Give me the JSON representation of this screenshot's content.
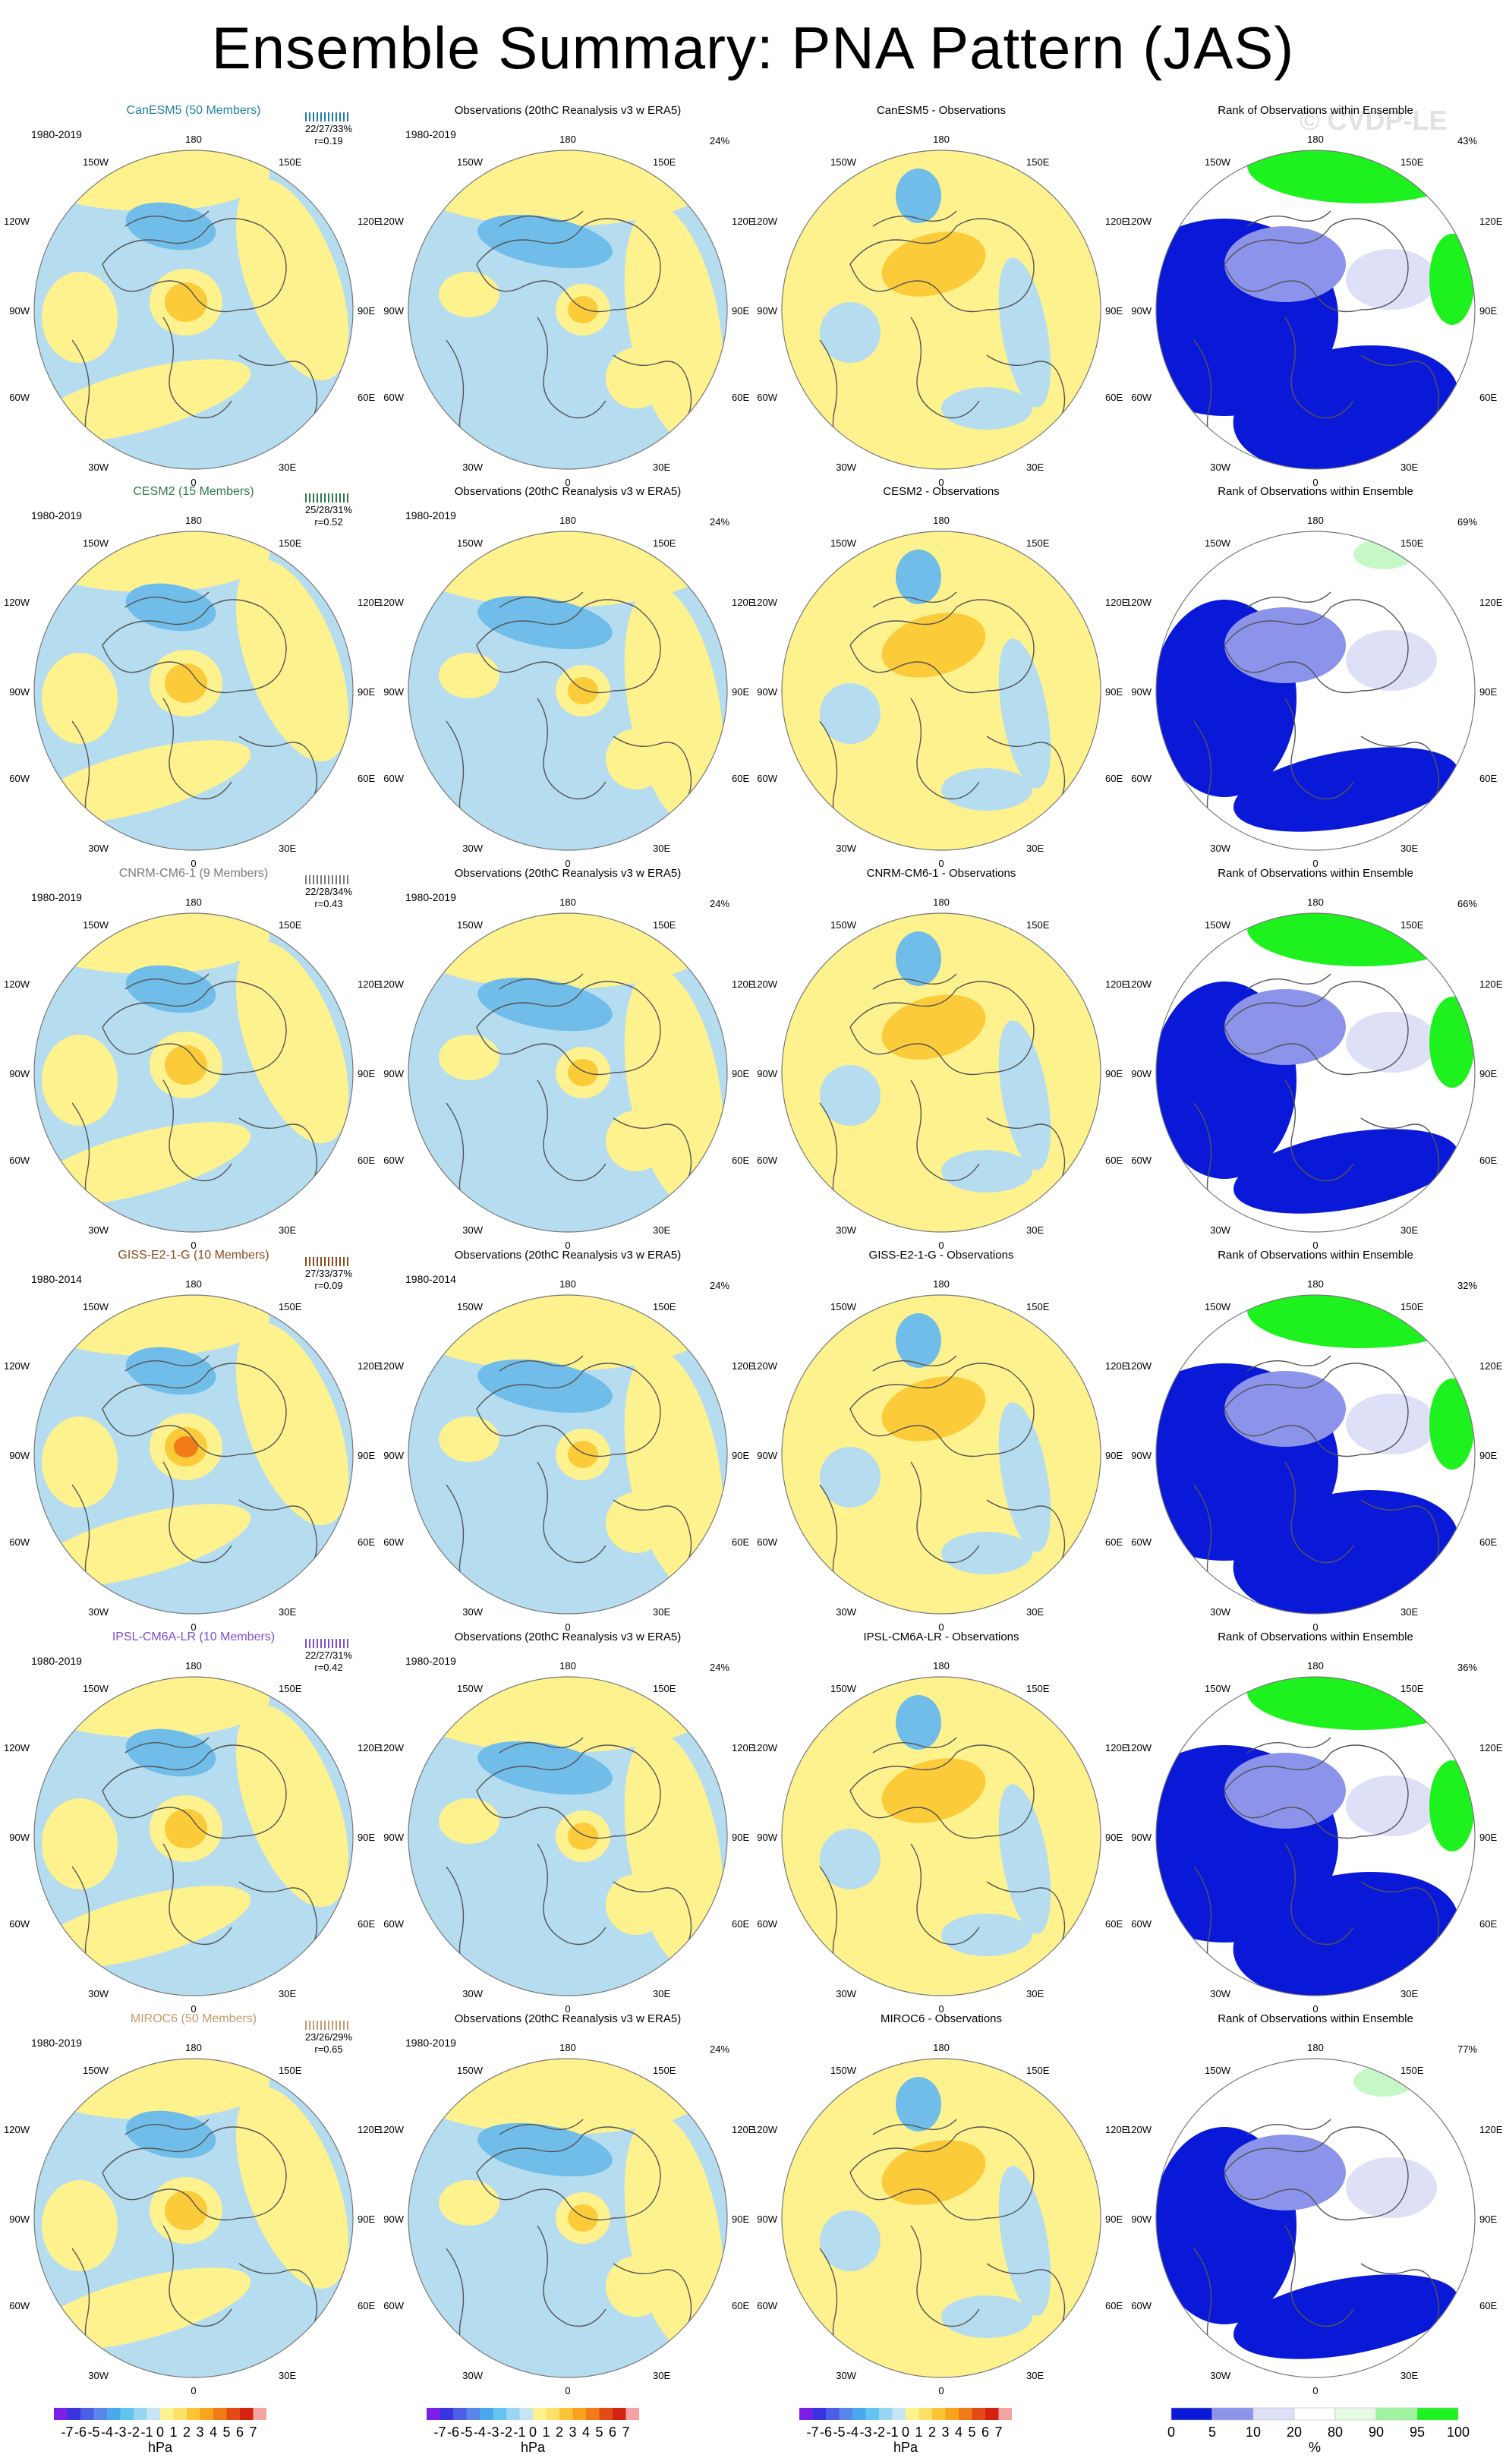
{
  "title": "Ensemble Summary: PNA Pattern (JAS)",
  "watermark": "© CVDP-LE",
  "colors": {
    "land_outline": "#555555",
    "pos1": "#fef28f",
    "pos2": "#fccb3a",
    "pos3": "#f9a31c",
    "pos4": "#f07b17",
    "neg1": "#b6dcf0",
    "neg2": "#6fbde8",
    "neg3": "#3a9cdf",
    "rank_low": "#0a18d8",
    "rank_lowmid": "#8c93ea",
    "rank_mid": "#dde0f6",
    "rank_neutral": "#ffffff",
    "rank_high": "#c6f7c6",
    "rank_top": "#1ef21e"
  },
  "column_titles": {
    "obs": "Observations (20thC Reanalysis v3 w ERA5)",
    "diff_suffix": " - Observations",
    "rank": "Rank of Observations within Ensemble"
  },
  "lon_labels": {
    "top": "180",
    "top_left": "150W",
    "top_right": "150E",
    "upper_left": "120W",
    "upper_right": "120E",
    "left": "90W",
    "right": "90E",
    "lower_left": "60W",
    "lower_right": "60E",
    "bottom_left": "30W",
    "bottom_right": "30E",
    "bottom": "0"
  },
  "obs_percent": "24%",
  "rows": [
    {
      "model": "CanESM5 (50 Members)",
      "model_short": "CanESM5",
      "color": "#1f7ea3",
      "period": "1980-2019",
      "stats": "22/27/33%",
      "r": "r=0.19",
      "rank_percent": "43%"
    },
    {
      "model": "CESM2 (15 Members)",
      "model_short": "CESM2",
      "color": "#2c7a4b",
      "period": "1980-2019",
      "stats": "25/28/31%",
      "r": "r=0.52",
      "rank_percent": "69%"
    },
    {
      "model": "CNRM-CM6-1 (9 Members)",
      "model_short": "CNRM-CM6-1",
      "color": "#7a7a7a",
      "period": "1980-2019",
      "stats": "22/28/34%",
      "r": "r=0.43",
      "rank_percent": "66%"
    },
    {
      "model": "GISS-E2-1-G (10 Members)",
      "model_short": "GISS-E2-1-G",
      "color": "#8a4a1f",
      "period": "1980-2014",
      "stats": "27/33/37%",
      "r": "r=0.09",
      "rank_percent": "32%"
    },
    {
      "model": "IPSL-CM6A-LR (10 Members)",
      "model_short": "IPSL-CM6A-LR",
      "color": "#7b4fd1",
      "period": "1980-2019",
      "stats": "22/27/31%",
      "r": "r=0.42",
      "rank_percent": "36%"
    },
    {
      "model": "MIROC6 (50 Members)",
      "model_short": "MIROC6",
      "color": "#c49a6c",
      "period": "1980-2019",
      "stats": "23/26/29%",
      "r": "r=0.65",
      "rank_percent": "77%"
    }
  ],
  "colorbar": {
    "unit": "hPa",
    "labels": [
      "-7",
      "-6",
      "-5",
      "-4",
      "-3",
      "-2",
      "-1",
      "0",
      "1",
      "2",
      "3",
      "4",
      "5",
      "6",
      "7"
    ],
    "colors": [
      "#7d1ee8",
      "#3a34e0",
      "#4c5ee6",
      "#5a86e9",
      "#4aa8ee",
      "#64c4f0",
      "#98d6f2",
      "#c4e6f6",
      "#fef28f",
      "#fde067",
      "#fcc437",
      "#f9a31c",
      "#f07b17",
      "#e44a14",
      "#d42211",
      "#f4a3a3"
    ]
  },
  "rank_colorbar": {
    "unit": "%",
    "labels": [
      "0",
      "5",
      "10",
      "20",
      "80",
      "90",
      "95",
      "100"
    ],
    "colors": [
      "#0a18d8",
      "#8c93ea",
      "#dde0f6",
      "#ffffff",
      "#e6fae6",
      "#9ff59f",
      "#1ef21e"
    ]
  }
}
